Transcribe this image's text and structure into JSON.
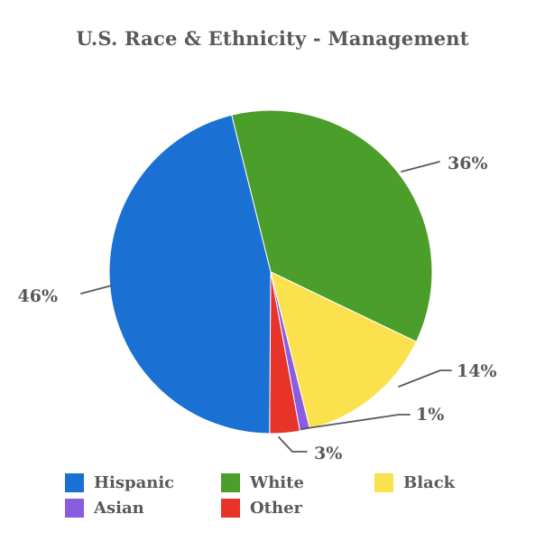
{
  "chart_data": {
    "type": "pie",
    "title": "U.S. Race & Ethnicity - Management",
    "slices": [
      {
        "label": "Hispanic",
        "value": 46,
        "pct_label": "46%",
        "color": "#1b70d3"
      },
      {
        "label": "White",
        "value": 36,
        "pct_label": "36%",
        "color": "#4a9e29"
      },
      {
        "label": "Black",
        "value": 14,
        "pct_label": "14%",
        "color": "#fce14f"
      },
      {
        "label": "Asian",
        "value": 1,
        "pct_label": "1%",
        "color": "#8c5ce0"
      },
      {
        "label": "Other",
        "value": 3,
        "pct_label": "3%",
        "color": "#e8332a"
      }
    ],
    "legend_position": "bottom",
    "label_color": "#595959",
    "background": "#ffffff"
  }
}
